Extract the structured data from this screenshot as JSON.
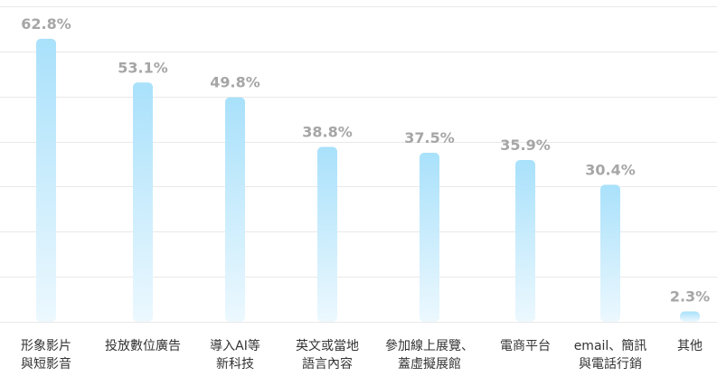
{
  "chart_data": {
    "type": "bar",
    "categories": [
      [
        "形象影片",
        "與短影音"
      ],
      [
        "投放數位廣告"
      ],
      [
        "導入AI等",
        "新科技"
      ],
      [
        "英文或當地",
        "語言內容"
      ],
      [
        "參加線上展覽、",
        "蓋虛擬展館"
      ],
      [
        "電商平台"
      ],
      [
        "email、簡訊",
        "與電話行銷"
      ],
      [
        "其他"
      ]
    ],
    "values": [
      62.8,
      53.1,
      49.8,
      38.8,
      37.5,
      35.9,
      30.4,
      2.3
    ],
    "value_labels": [
      "62.8%",
      "53.1%",
      "49.8%",
      "38.8%",
      "37.5%",
      "35.9%",
      "30.4%",
      "2.3%"
    ],
    "ylim": [
      0,
      70
    ],
    "grid": true,
    "gridlines": [
      0,
      10,
      20,
      30,
      40,
      50,
      60,
      70
    ],
    "colors": {
      "bar_top": "#a9e1fb",
      "bar_bottom": "#ecf8fe",
      "value_label": "#a6a6a6",
      "category_label": "#333333",
      "grid": "#e9e9e9"
    }
  }
}
